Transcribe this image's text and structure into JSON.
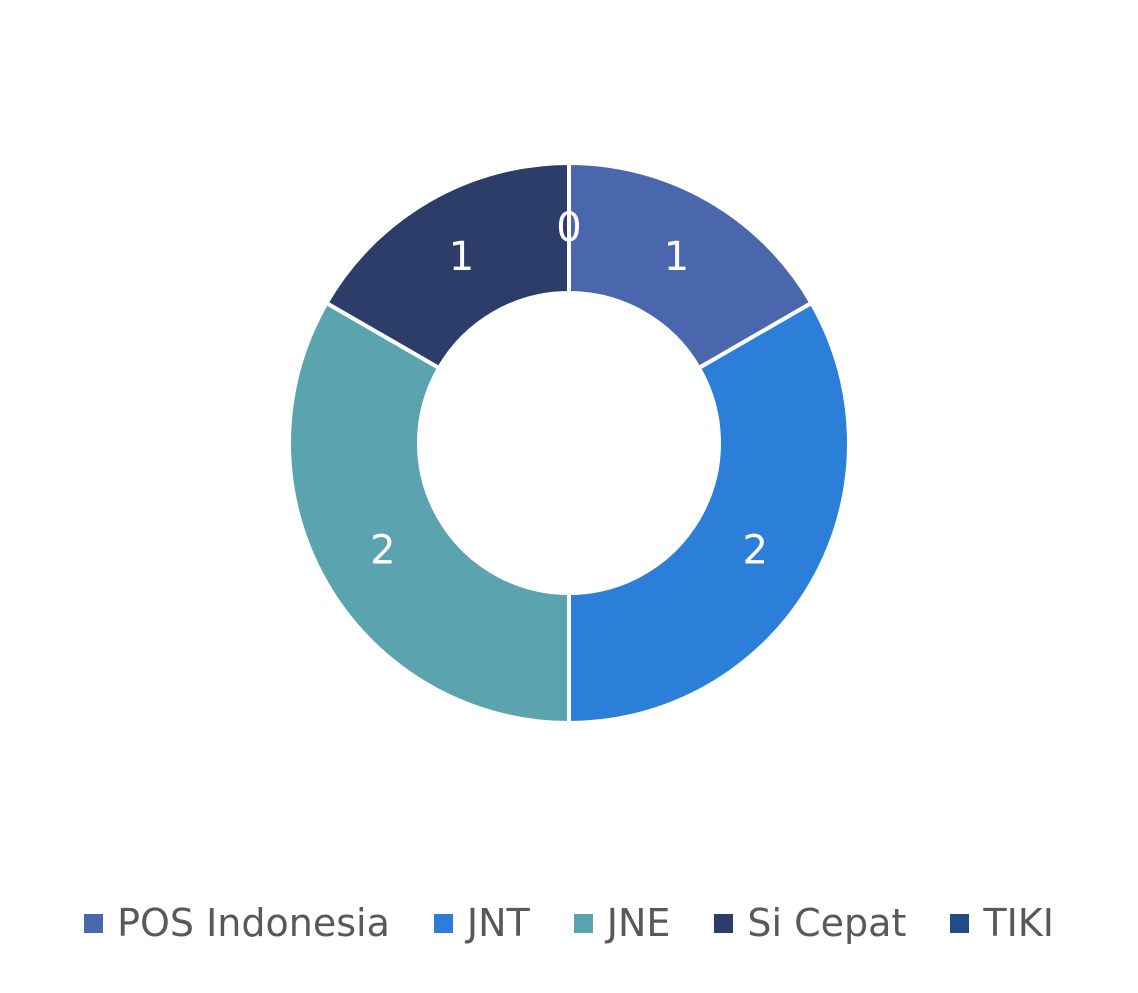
{
  "chart_data": {
    "type": "pie",
    "variant": "donut",
    "categories": [
      "POS Indonesia",
      "JNT",
      "JNE",
      "Si Cepat",
      "TIKI"
    ],
    "values": [
      1,
      2,
      2,
      1,
      0
    ],
    "colors": [
      "#4A67AE",
      "#2B7FD8",
      "#5BA3AF",
      "#2D3D69",
      "#1F4E84"
    ],
    "data_labels": [
      "1",
      "2",
      "2",
      "1",
      "0"
    ],
    "legend_placement": "bottom",
    "title": ""
  },
  "legend": {
    "items": [
      {
        "label": "POS Indonesia",
        "color": "#4A67AE"
      },
      {
        "label": "JNT",
        "color": "#2B7FD8"
      },
      {
        "label": "JNE",
        "color": "#5BA3AF"
      },
      {
        "label": "Si Cepat",
        "color": "#2D3D69"
      },
      {
        "label": "TIKI",
        "color": "#1F4E84"
      }
    ]
  }
}
